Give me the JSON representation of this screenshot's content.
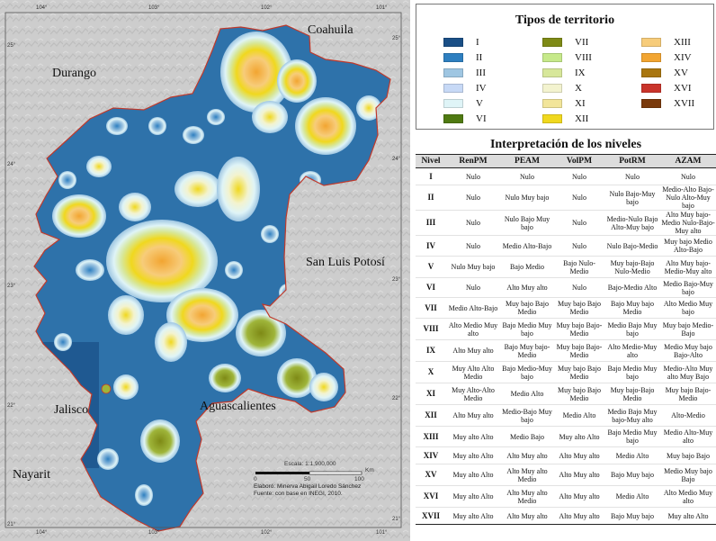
{
  "map": {
    "labels": {
      "coahuila": "Coahuila",
      "durango": "Durango",
      "san_luis_potosi": "San Luis Potosí",
      "aguascalientes": "Aguascalientes",
      "jalisco": "Jalisco",
      "nayarit": "Nayarit"
    },
    "coords": {
      "top": [
        "104°",
        "103°",
        "102°",
        "101°"
      ],
      "bottom": [
        "104°",
        "103°",
        "102°",
        "101°"
      ],
      "left": [
        "25°",
        "24°",
        "23°",
        "22°",
        "21°"
      ],
      "right": [
        "25°",
        "24°",
        "23°",
        "22°",
        "21°"
      ]
    },
    "scale": {
      "text": "Escala: 1:1,900,000",
      "ticks": [
        "0",
        "50",
        "100"
      ],
      "unit": "Km"
    },
    "credits": {
      "line1": "Elaboró: Minerva Abigail Loredo Sánchez",
      "line2": "Fuente: con base en INEGI, 2010."
    },
    "colors": {
      "territory_base": "#2e72aa",
      "outline": "#c0392b",
      "relief": "#d0d0d0"
    }
  },
  "legend": {
    "title": "Tipos de territorio",
    "items": [
      {
        "label": "I",
        "color": "#1a4f86"
      },
      {
        "label": "II",
        "color": "#2e7fc0"
      },
      {
        "label": "III",
        "color": "#9fc6e2"
      },
      {
        "label": "IV",
        "color": "#c7d9f6"
      },
      {
        "label": "V",
        "color": "#dff4f7"
      },
      {
        "label": "VI",
        "color": "#4f7a12"
      },
      {
        "label": "VII",
        "color": "#7e8a16"
      },
      {
        "label": "VIII",
        "color": "#c6e98a"
      },
      {
        "label": "IX",
        "color": "#d7e79a"
      },
      {
        "label": "X",
        "color": "#f3f3cf"
      },
      {
        "label": "XI",
        "color": "#f2e59a"
      },
      {
        "label": "XII",
        "color": "#f0d81e"
      },
      {
        "label": "XIII",
        "color": "#f7cc7a"
      },
      {
        "label": "XIV",
        "color": "#f2a531"
      },
      {
        "label": "XV",
        "color": "#a9760f"
      },
      {
        "label": "XVI",
        "color": "#c9342b"
      },
      {
        "label": "XVII",
        "color": "#7a3a0c"
      }
    ]
  },
  "interpretation": {
    "title": "Interpretación de los niveles",
    "headers": [
      "Nivel",
      "RenPM",
      "PEAM",
      "VolPM",
      "PotRM",
      "AZAM"
    ],
    "rows": [
      [
        "I",
        "Nulo",
        "Nulo",
        "Nulo",
        "Nulo",
        "Nulo"
      ],
      [
        "II",
        "Nulo",
        "Nulo Muy bajo",
        "Nulo",
        "Nulo Bajo-Muy bajo",
        "Medio-Alto Bajo-Nulo Alto-Muy bajo"
      ],
      [
        "III",
        "Nulo",
        "Nulo Bajo Muy bajo",
        "Nulo",
        "Medio-Nulo Bajo Alto-Muy bajo",
        "Alto Muy bajo-Medio Nulo-Bajo-Muy alto"
      ],
      [
        "IV",
        "Nulo",
        "Medio Alto-Bajo",
        "Nulo",
        "Nulo Bajo-Medio",
        "Muy bajo Medio Alto-Bajo"
      ],
      [
        "V",
        "Nulo Muy bajo",
        "Bajo Medio",
        "Bajo Nulo-Medio",
        "Muy bajo-Bajo Nulo-Medio",
        "Alto Muy bajo-Medio-Muy alto"
      ],
      [
        "VI",
        "Nulo",
        "Alto Muy alto",
        "Nulo",
        "Bajo-Medio Alto",
        "Medio Bajo-Muy bajo"
      ],
      [
        "VII",
        "Medio Alto-Bajo",
        "Muy bajo Bajo Medio",
        "Muy bajo Bajo Medio",
        "Bajo Muy bajo Medio",
        "Alto Medio Muy bajo"
      ],
      [
        "VIII",
        "Alto Medio Muy alto",
        "Bajo Medio Muy bajo",
        "Muy bajo Bajo-Medio",
        "Medio Bajo Muy bajo",
        "Muy bajo Medio-Bajo"
      ],
      [
        "IX",
        "Alto Muy alto",
        "Bajo Muy bajo-Medio",
        "Muy bajo Bajo-Medio",
        "Alto Medio-Muy alto",
        "Medio Muy bajo Bajo-Alto"
      ],
      [
        "X",
        "Muy Alto Alto Medio",
        "Bajo Medio-Muy bajo",
        "Muy bajo Bajo Medio",
        "Bajo Medio Muy bajo",
        "Medio-Alto Muy alto Muy Bajo"
      ],
      [
        "XI",
        "Muy Alto-Alto Medio",
        "Medio Alto",
        "Muy bajo Bajo Medio",
        "Muy bajo-Bajo Medio",
        "Muy bajo Bajo-Medio"
      ],
      [
        "XII",
        "Alto Muy alto",
        "Medio-Bajo Muy bajo",
        "Medio Alto",
        "Medio Bajo Muy bajo-Muy alto",
        "Alto-Medio"
      ],
      [
        "XIII",
        "Muy alto Alto",
        "Medio Bajo",
        "Muy alto Alto",
        "Bajo Medio Muy bajo",
        "Medio Alto-Muy alto"
      ],
      [
        "XIV",
        "Muy alto Alto",
        "Alto Muy alto",
        "Alto Muy alto",
        "Medio Alto",
        "Muy bajo Bajo"
      ],
      [
        "XV",
        "Muy alto Alto",
        "Alto Muy alto Medio",
        "Alto Muy alto",
        "Bajo Muy bajo",
        "Medio Muy bajo Bajo"
      ],
      [
        "XVI",
        "Muy alto Alto",
        "Alto Muy alto Medio",
        "Alto Muy alto",
        "Medio Alto",
        "Alto Medio Muy alto"
      ],
      [
        "XVII",
        "Muy alto Alto",
        "Alto Muy alto",
        "Alto Muy alto",
        "Bajo Muy bajo",
        "Muy alto Alto"
      ]
    ]
  }
}
